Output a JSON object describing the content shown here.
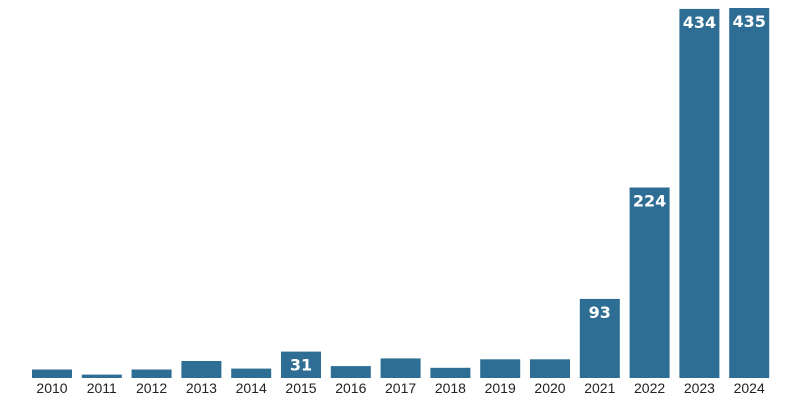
{
  "chart_data": {
    "type": "bar",
    "title": "",
    "xlabel": "",
    "ylabel": "",
    "categories": [
      "2010",
      "2011",
      "2012",
      "2013",
      "2014",
      "2015",
      "2016",
      "2017",
      "2018",
      "2019",
      "2020",
      "2021",
      "2022",
      "2023",
      "2024"
    ],
    "values": [
      10,
      4,
      10,
      20,
      11,
      31,
      14,
      23,
      12,
      22,
      22,
      93,
      224,
      434,
      435
    ],
    "data_labels": [
      "",
      "",
      "",
      "",
      "",
      "31",
      "",
      "",
      "",
      "",
      "",
      "93",
      "224",
      "434",
      "435"
    ],
    "ylim": [
      0,
      435
    ],
    "grid": false,
    "legend": "none",
    "colors": {
      "bar": "#2e6e94",
      "label": "#ffffff",
      "tick": "#222222"
    }
  }
}
